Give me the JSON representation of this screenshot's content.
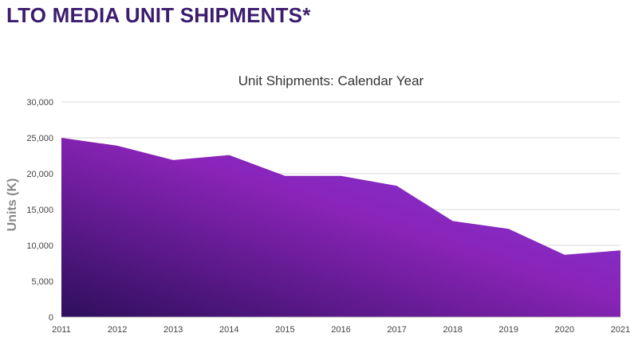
{
  "page": {
    "title": "LTO MEDIA UNIT SHIPMENTS*"
  },
  "colors": {
    "title": "#3b1c6e",
    "area_start": "#2e0f5c",
    "area_mid": "#8a24b8",
    "area_end": "#7a3be0",
    "grid": "#d9d9d9"
  },
  "chart_data": {
    "type": "area",
    "title": "Unit Shipments: Calendar Year",
    "xlabel": "",
    "ylabel": "Units (K)",
    "x": [
      2011,
      2012,
      2013,
      2014,
      2015,
      2016,
      2017,
      2018,
      2019,
      2020,
      2021
    ],
    "x_labels": [
      "2011",
      "2012",
      "2013",
      "2014",
      "2015",
      "2016",
      "2017",
      "2018",
      "2019",
      "2020",
      "2021"
    ],
    "values": [
      25000,
      23900,
      21900,
      22600,
      19700,
      19700,
      18300,
      13400,
      12300,
      8700,
      9300
    ],
    "ylim": [
      0,
      30000
    ],
    "yticks": [
      0,
      5000,
      10000,
      15000,
      20000,
      25000,
      30000
    ],
    "ytick_labels": [
      "0",
      "5,000",
      "10,000",
      "15,000",
      "20,000",
      "25,000",
      "30,000"
    ],
    "grid": true,
    "legend": "none"
  }
}
